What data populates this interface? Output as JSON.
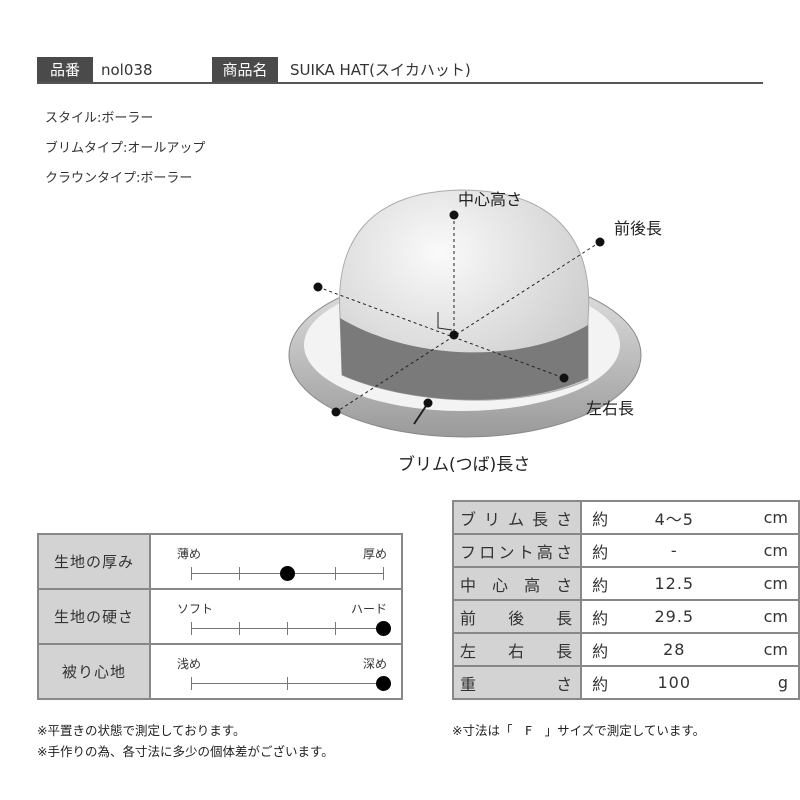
{
  "header": {
    "code_label": "品番",
    "code": "nol038",
    "name_label": "商品名",
    "name": "SUIKA HAT(スイカハット)"
  },
  "specs": [
    "スタイル:ボーラー",
    "ブリムタイプ:オールアップ",
    "クラウンタイプ:ボーラー"
  ],
  "diagram": {
    "center_height": "中心高さ",
    "front_back": "前後長",
    "left_right": "左右長",
    "brim": "ブリム(つば)長さ"
  },
  "feel": [
    {
      "label": "生地の厚み",
      "left": "薄め",
      "right": "厚め",
      "ticks": 5,
      "value": 0.5
    },
    {
      "label": "生地の硬さ",
      "left": "ソフト",
      "right": "ハード",
      "ticks": 5,
      "value": 1.0
    },
    {
      "label": "被り心地",
      "left": "浅め",
      "right": "深め",
      "ticks": 3,
      "value": 1.0
    }
  ],
  "measurements": [
    {
      "label": "ブリム長さ",
      "prefix": "約",
      "value": "4～5",
      "unit": "cm"
    },
    {
      "label": "フロント高さ",
      "prefix": "約",
      "value": "-",
      "unit": "cm"
    },
    {
      "label": "中心高さ",
      "prefix": "約",
      "value": "12.5",
      "unit": "cm"
    },
    {
      "label": "前後長",
      "prefix": "約",
      "value": "29.5",
      "unit": "cm"
    },
    {
      "label": "左右長",
      "prefix": "約",
      "value": "28",
      "unit": "cm"
    },
    {
      "label": "重さ",
      "prefix": "約",
      "value": "100",
      "unit": "g"
    }
  ],
  "notes_left": [
    "※平置きの状態で測定しております。",
    "※手作りの為、各寸法に多少の個体差がございます。"
  ],
  "note_right": "※寸法は「　F　」サイズで測定しています。"
}
